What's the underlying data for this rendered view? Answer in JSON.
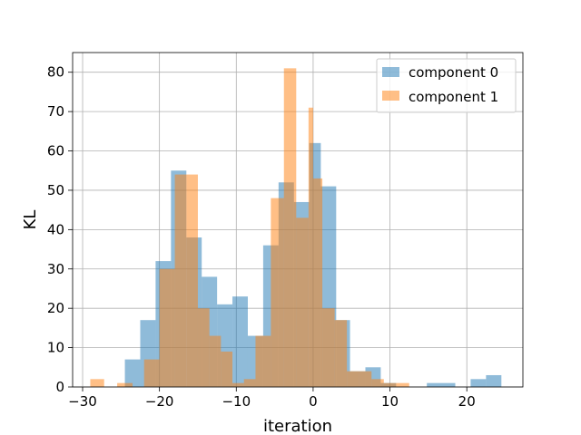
{
  "chart_data": {
    "type": "bar",
    "subtype": "overlapping-histogram",
    "title": "",
    "xlabel": "iteration",
    "ylabel": "KL",
    "xlim": [
      -31.3,
      27.3
    ],
    "ylim": [
      0,
      85
    ],
    "xticks": [
      -30,
      -20,
      -10,
      0,
      10,
      20
    ],
    "yticks": [
      0,
      10,
      20,
      30,
      40,
      50,
      60,
      70,
      80
    ],
    "xtick_labels": [
      "−30",
      "−20",
      "−10",
      "0",
      "10",
      "20"
    ],
    "ytick_labels": [
      "0",
      "10",
      "20",
      "30",
      "40",
      "50",
      "60",
      "70",
      "80"
    ],
    "grid": true,
    "legend_position": "top-right",
    "series": [
      {
        "name": "component 0",
        "color": "#1f77b4",
        "opacity": 0.5,
        "bin_edges": [
          -30,
          -28,
          -26,
          -24,
          -22,
          -20,
          -18,
          -16,
          -14,
          -12,
          -10,
          -8,
          -6,
          -4,
          -2,
          0,
          2,
          4,
          6,
          8,
          10,
          12,
          14,
          16,
          18,
          20,
          22,
          24,
          26
        ],
        "bins": [
          {
            "x0": -24.5,
            "x1": -22.5,
            "y": 7
          },
          {
            "x0": -22.5,
            "x1": -20.5,
            "y": 17
          },
          {
            "x0": -20.5,
            "x1": -18.5,
            "y": 32
          },
          {
            "x0": -18.5,
            "x1": -16.5,
            "y": 55
          },
          {
            "x0": -16.5,
            "x1": -14.5,
            "y": 38
          },
          {
            "x0": -14.5,
            "x1": -12.5,
            "y": 28
          },
          {
            "x0": -12.5,
            "x1": -10.5,
            "y": 21
          },
          {
            "x0": -10.5,
            "x1": -8.5,
            "y": 23
          },
          {
            "x0": -8.5,
            "x1": -6.5,
            "y": 13
          },
          {
            "x0": -6.5,
            "x1": -4.5,
            "y": 36
          },
          {
            "x0": -4.5,
            "x1": -2.5,
            "y": 52
          },
          {
            "x0": -2.5,
            "x1": -0.5,
            "y": 47
          },
          {
            "x0": -0.5,
            "x1": 1.0,
            "y": 62
          },
          {
            "x0": 1.0,
            "x1": 3.0,
            "y": 51
          },
          {
            "x0": 3.0,
            "x1": 4.8,
            "y": 17
          },
          {
            "x0": 4.8,
            "x1": 6.8,
            "y": 4
          },
          {
            "x0": 6.8,
            "x1": 8.8,
            "y": 5
          },
          {
            "x0": 8.8,
            "x1": 10.8,
            "y": 1
          },
          {
            "x0": 14.8,
            "x1": 18.5,
            "y": 1
          },
          {
            "x0": 20.5,
            "x1": 22.5,
            "y": 2
          },
          {
            "x0": 22.5,
            "x1": 24.5,
            "y": 3
          }
        ]
      },
      {
        "name": "component 1",
        "color": "#ff7f0e",
        "opacity": 0.5,
        "bins": [
          {
            "x0": -29.0,
            "x1": -27.2,
            "y": 2
          },
          {
            "x0": -25.5,
            "x1": -23.5,
            "y": 1
          },
          {
            "x0": -22.0,
            "x1": -20.0,
            "y": 7
          },
          {
            "x0": -20.0,
            "x1": -18.0,
            "y": 30
          },
          {
            "x0": -18.0,
            "x1": -16.5,
            "y": 54
          },
          {
            "x0": -16.5,
            "x1": -15.0,
            "y": 54
          },
          {
            "x0": -15.0,
            "x1": -13.5,
            "y": 20
          },
          {
            "x0": -13.5,
            "x1": -12.0,
            "y": 13
          },
          {
            "x0": -12.0,
            "x1": -10.5,
            "y": 9
          },
          {
            "x0": -10.5,
            "x1": -9.0,
            "y": 1
          },
          {
            "x0": -9.0,
            "x1": -7.5,
            "y": 2
          },
          {
            "x0": -7.5,
            "x1": -5.5,
            "y": 13
          },
          {
            "x0": -5.5,
            "x1": -3.8,
            "y": 48
          },
          {
            "x0": -3.8,
            "x1": -2.2,
            "y": 81
          },
          {
            "x0": -2.2,
            "x1": -0.6,
            "y": 43
          },
          {
            "x0": -0.6,
            "x1": 0.0,
            "y": 71
          },
          {
            "x0": 0.0,
            "x1": 1.2,
            "y": 53
          },
          {
            "x0": 1.2,
            "x1": 2.8,
            "y": 20
          },
          {
            "x0": 2.8,
            "x1": 4.4,
            "y": 17
          },
          {
            "x0": 4.4,
            "x1": 6.0,
            "y": 4
          },
          {
            "x0": 6.0,
            "x1": 7.6,
            "y": 4
          },
          {
            "x0": 7.6,
            "x1": 9.2,
            "y": 2
          },
          {
            "x0": 9.2,
            "x1": 10.8,
            "y": 1
          },
          {
            "x0": 10.8,
            "x1": 12.5,
            "y": 1
          }
        ]
      }
    ]
  }
}
